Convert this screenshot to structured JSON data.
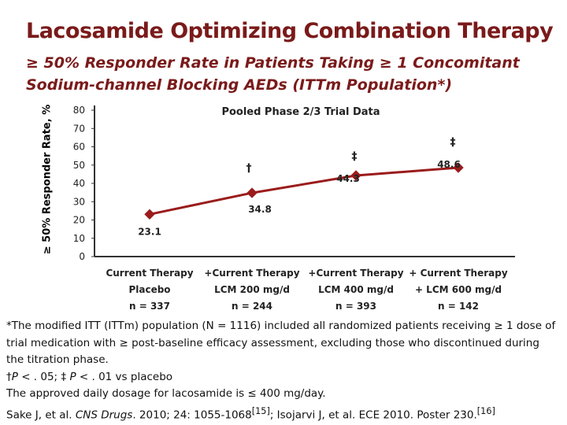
{
  "slide": {
    "title": "Lacosamide Optimizing Combination Therapy",
    "subtitle": "≥ 50% Responder Rate in Patients Taking ≥ 1 Concomitant Sodium-channel Blocking AEDs (ITTm Population*)"
  },
  "chart_data": {
    "type": "line",
    "title": "Pooled Phase 2/3 Trial Data",
    "ylabel": "≥ 50% Responder Rate, %",
    "xlabel": "",
    "ylim": [
      0,
      80
    ],
    "yticks": [
      0,
      10,
      20,
      30,
      40,
      50,
      60,
      70,
      80
    ],
    "grid": false,
    "categories": [
      [
        "Current Therapy",
        "Placebo",
        "n = 337"
      ],
      [
        "+Current Therapy",
        "LCM 200 mg/d",
        "n = 244"
      ],
      [
        "+Current Therapy",
        "LCM 400 mg/d",
        "n = 393"
      ],
      [
        "+ Current Therapy",
        "+ LCM 600 mg/d",
        "n = 142"
      ]
    ],
    "series": [
      {
        "values": [
          23.1,
          34.8,
          44.3,
          48.6
        ],
        "data_labels": [
          "23.1",
          "34.8",
          "44.3",
          "48.6"
        ]
      }
    ],
    "significance": [
      "",
      "†",
      "‡",
      "‡"
    ],
    "color": "#9b1c1c"
  },
  "footnotes": {
    "itt": "*The modified ITT (ITTm) population (N = 1116) included all randomized patients receiving ≥ 1 dose of trial medication with ≥ post-baseline efficacy assessment, excluding those who discontinued during the titration phase.",
    "sig_dagger": "†",
    "sig_p1": "P",
    "sig_mid": " < . 05; ‡ ",
    "sig_p2": "P",
    "sig_end": " < . 01 vs placebo",
    "dosage": "The approved daily dosage for lacosamide is ≤ 400 mg/day.",
    "cite_a": "Sake J, et al. ",
    "cite_journal": "CNS Drugs",
    "cite_b": ". 2010; 24: 1055-1068",
    "cite_ref1": "[15]",
    "cite_c": "; Isojarvi J, et al. ECE 2010. Poster 230.",
    "cite_ref2": "[16]"
  }
}
